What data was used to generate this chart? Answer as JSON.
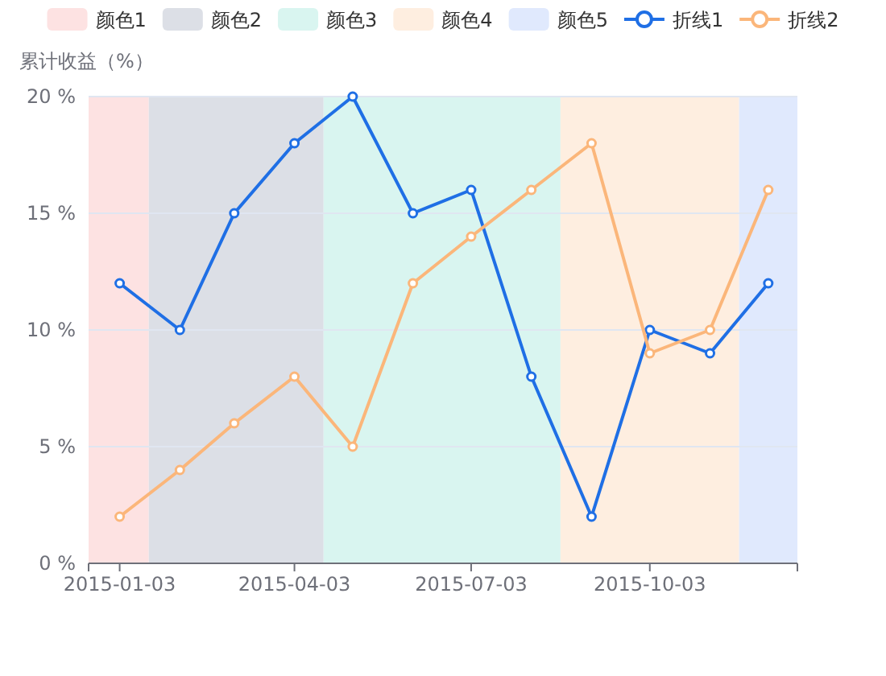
{
  "chart_data": {
    "type": "line",
    "ylabel": "累计收益（%）",
    "x": [
      "2015-01-03",
      "2015-02-03",
      "2015-03-03",
      "2015-04-03",
      "2015-05-03",
      "2015-06-03",
      "2015-07-03",
      "2015-08-03",
      "2015-09-03",
      "2015-10-03",
      "2015-11-03",
      "2015-12-03"
    ],
    "xlim": [
      "2014-12-18",
      "2015-12-18"
    ],
    "xticks": [
      "2015-01-03",
      "2015-04-03",
      "2015-07-03",
      "2015-10-03"
    ],
    "ylim": [
      0,
      20
    ],
    "yticks": [
      {
        "value": 0,
        "label": "0 %"
      },
      {
        "value": 5,
        "label": "5 %"
      },
      {
        "value": 10,
        "label": "10 %"
      },
      {
        "value": 15,
        "label": "15 %"
      },
      {
        "value": 20,
        "label": "20 %"
      }
    ],
    "series": [
      {
        "name": "折线1",
        "color": "#1f6fe5",
        "values": [
          12,
          10,
          15,
          18,
          20,
          15,
          16,
          8,
          2,
          10,
          9,
          12
        ]
      },
      {
        "name": "折线2",
        "color": "#fbb67a",
        "values": [
          2,
          4,
          6,
          8,
          5,
          12,
          14,
          16,
          18,
          9,
          10,
          16
        ]
      }
    ],
    "bands": [
      {
        "axis": "x",
        "from": "2014-12-18",
        "to": "2015-01-18",
        "label": "颜色1",
        "color": "#fde2e2"
      },
      {
        "axis": "x",
        "from": "2015-01-18",
        "to": "2015-04-18",
        "label": "颜色2",
        "color": "#dcdfe6"
      },
      {
        "axis": "x",
        "from": "2015-04-18",
        "to": "2015-08-18",
        "label": "颜色3",
        "color": "#d9f5f0"
      },
      {
        "axis": "x",
        "from": "2015-08-18",
        "to": "2015-11-18",
        "label": "颜色4",
        "color": "#feeee0"
      },
      {
        "axis": "x",
        "from": "2015-11-18",
        "to": "2015-12-18",
        "label": "颜色5",
        "color": "#e0e9fd"
      }
    ],
    "grid": "y",
    "legend": "top",
    "marker": "circle",
    "line_style": "solid"
  }
}
